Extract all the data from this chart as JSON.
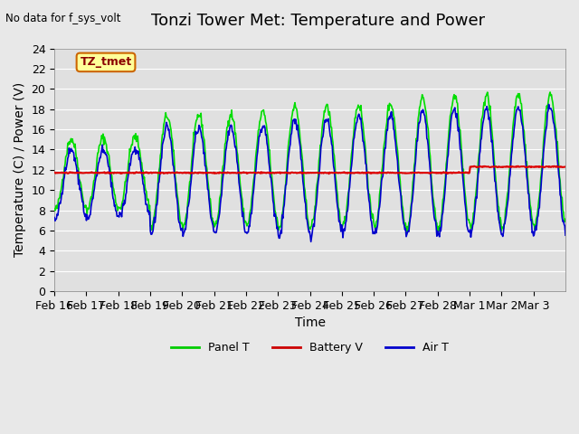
{
  "title": "Tonzi Tower Met: Temperature and Power",
  "top_left_text": "No data for f_sys_volt",
  "xlabel": "Time",
  "ylabel": "Temperature (C) / Power (V)",
  "ylim": [
    0,
    24
  ],
  "yticks": [
    0,
    2,
    4,
    6,
    8,
    10,
    12,
    14,
    16,
    18,
    20,
    22,
    24
  ],
  "xtick_labels": [
    "Feb 16",
    "Feb 17",
    "Feb 18",
    "Feb 19",
    "Feb 20",
    "Feb 21",
    "Feb 22",
    "Feb 23",
    "Feb 24",
    "Feb 25",
    "Feb 26",
    "Feb 27",
    "Feb 28",
    "Mar 1",
    "Mar 2",
    "Mar 3"
  ],
  "legend_labels": [
    "Panel T",
    "Battery V",
    "Air T"
  ],
  "legend_colors": [
    "#00cc00",
    "#cc0000",
    "#0000cc"
  ],
  "annotation_text": "TZ_tmet",
  "annotation_box_color": "#ffff99",
  "annotation_box_edge": "#cc6600",
  "background_color": "#e8e8e8",
  "plot_bg_color": "#e0e0e0",
  "title_fontsize": 13,
  "axis_fontsize": 10,
  "tick_fontsize": 9,
  "panel_T_color": "#00dd00",
  "battery_V_color": "#dd0000",
  "air_T_color": "#0000cc",
  "n_days": 16,
  "pts_per_day": 48
}
